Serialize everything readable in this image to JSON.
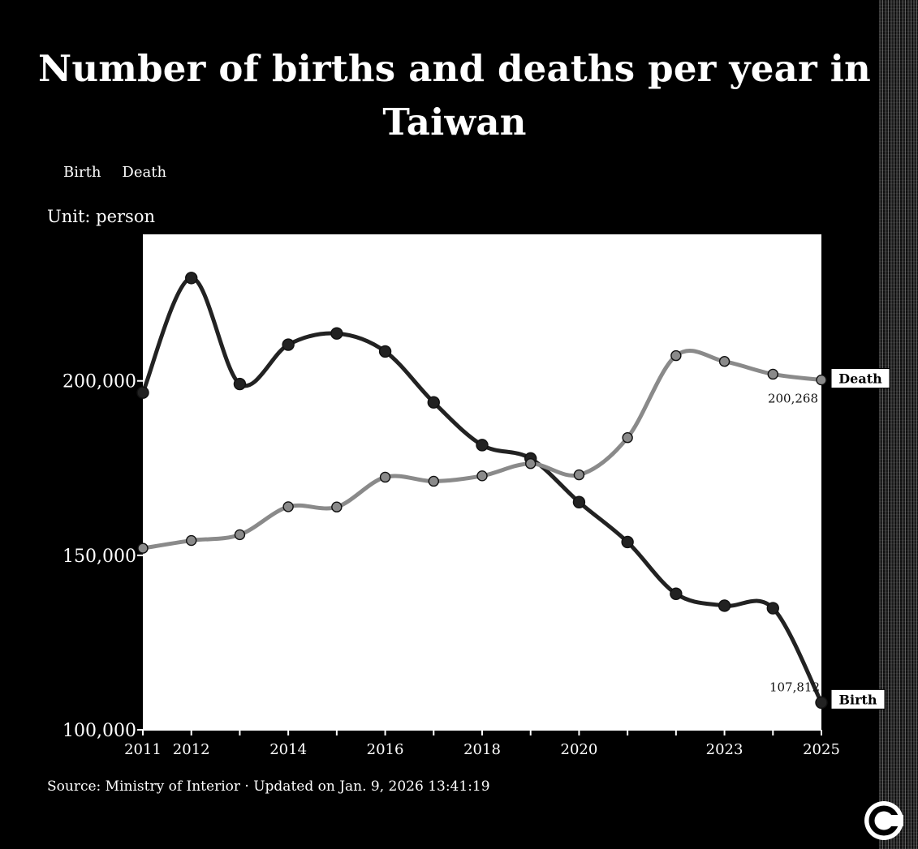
{
  "colors": {
    "background": "#000000",
    "plot_area": "#ffffff",
    "death_line": "#8a8a8a",
    "birth_line": "#222222"
  },
  "icons": {
    "logo": "cna-logo-icon"
  },
  "chart_data": {
    "type": "line",
    "title": "Number of births and deaths per year in Taiwan",
    "legend": [
      "Birth",
      "Death"
    ],
    "unit": "Unit: person",
    "x": [
      2011,
      2012,
      2013,
      2014,
      2015,
      2016,
      2017,
      2018,
      2019,
      2020,
      2021,
      2022,
      2023,
      2024,
      2025
    ],
    "x_tick_labels": [
      "2011",
      "2012",
      "2014",
      "2016",
      "2018",
      "2020",
      "2023",
      "2025"
    ],
    "x_tick_years": [
      2011,
      2012,
      2014,
      2016,
      2018,
      2020,
      2023,
      2025
    ],
    "y_ticks": [
      100000,
      150000,
      200000
    ],
    "y_tick_labels": [
      "100,000",
      "150,000",
      "200,000"
    ],
    "ylim": [
      100000,
      242000
    ],
    "series": [
      {
        "name": "Birth",
        "values": [
          196627,
          229481,
          199113,
          210383,
          213598,
          208440,
          193844,
          181601,
          177767,
          165249,
          153820,
          138986,
          135571,
          134856,
          107812
        ],
        "label_last": "107,812",
        "end_tag": "Birth"
      },
      {
        "name": "Death",
        "values": [
          152030,
          154251,
          155908,
          163929,
          163858,
          172405,
          171242,
          172784,
          176296,
          173067,
          183732,
          207230,
          205575,
          201917,
          200268
        ],
        "label_last": "200,268",
        "end_tag": "Death"
      }
    ],
    "grid": false,
    "legend_placement": "top-left"
  },
  "footer": {
    "source": "Source: Ministry of Interior · Updated on Jan. 9, 2026 13:41:19"
  }
}
